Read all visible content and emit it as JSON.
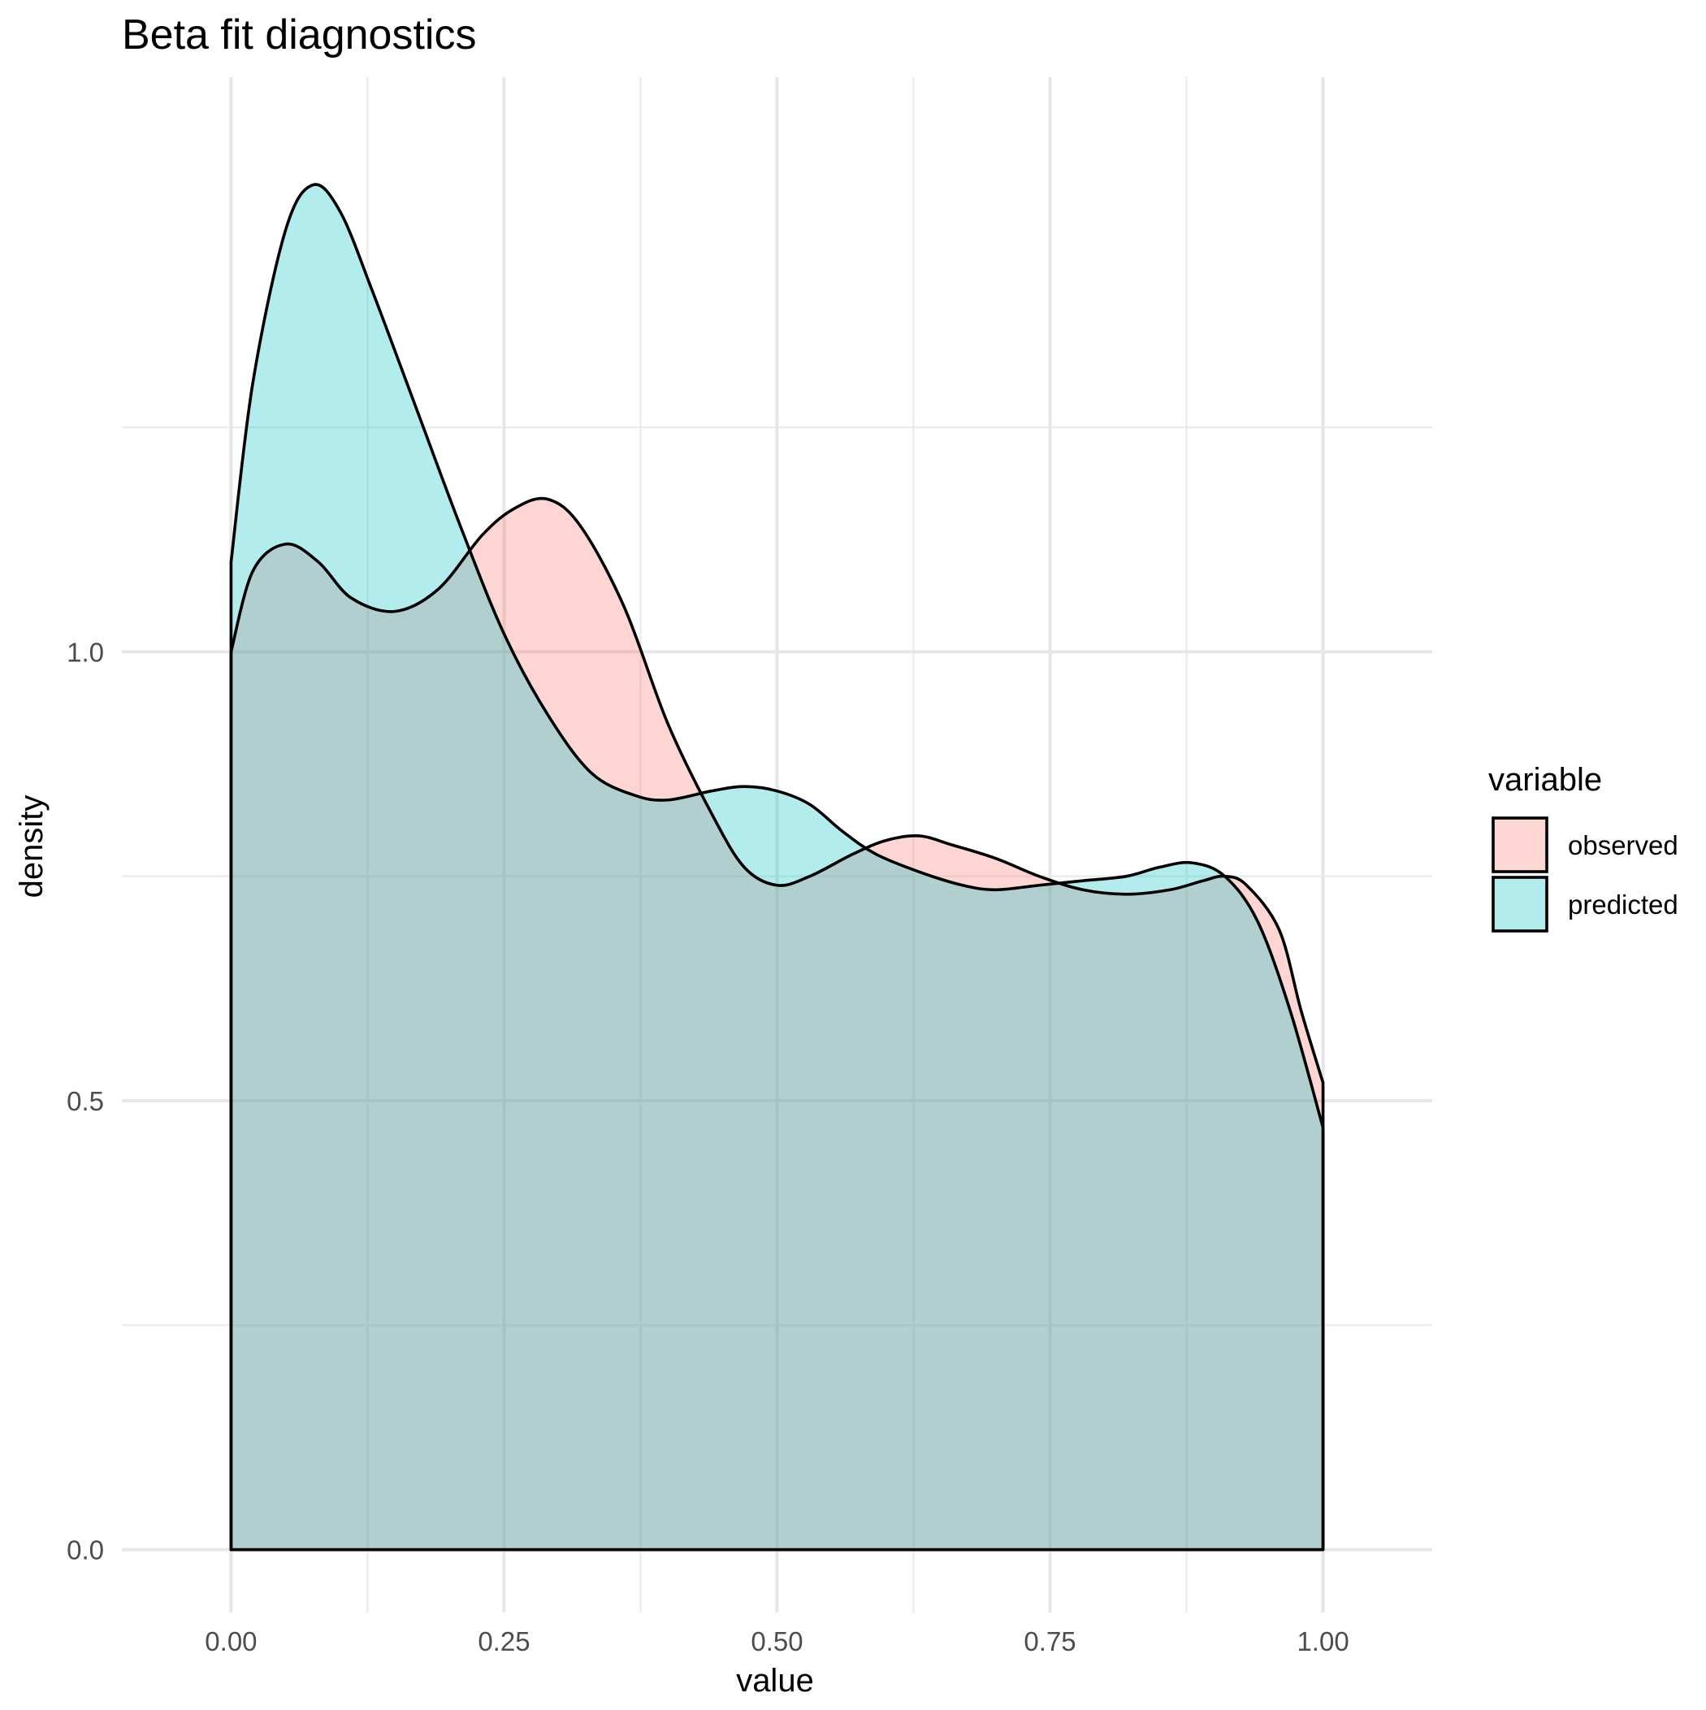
{
  "chart_data": {
    "type": "area",
    "title": "Beta fit diagnostics",
    "xlabel": "value",
    "ylabel": "density",
    "xlim": [
      -0.1,
      1.1
    ],
    "ylim": [
      -0.07,
      1.64
    ],
    "x_ticks": [
      0.0,
      0.25,
      0.5,
      0.75,
      1.0
    ],
    "x_tick_labels": [
      "0.00",
      "0.25",
      "0.50",
      "0.75",
      "1.00"
    ],
    "y_ticks": [
      0.0,
      0.5,
      1.0
    ],
    "y_tick_labels": [
      "0.0",
      "0.5",
      "1.0"
    ],
    "grid": true,
    "legend": {
      "title": "variable",
      "position": "right",
      "entries": [
        "observed",
        "predicted"
      ]
    },
    "series": [
      {
        "name": "observed",
        "color": "#F8766D",
        "points": [
          [
            0.0,
            1.0
          ],
          [
            0.02,
            1.09
          ],
          [
            0.05,
            1.12
          ],
          [
            0.08,
            1.1
          ],
          [
            0.11,
            1.06
          ],
          [
            0.15,
            1.045
          ],
          [
            0.19,
            1.07
          ],
          [
            0.23,
            1.13
          ],
          [
            0.26,
            1.16
          ],
          [
            0.29,
            1.17
          ],
          [
            0.32,
            1.14
          ],
          [
            0.36,
            1.05
          ],
          [
            0.4,
            0.92
          ],
          [
            0.44,
            0.82
          ],
          [
            0.47,
            0.76
          ],
          [
            0.5,
            0.74
          ],
          [
            0.53,
            0.75
          ],
          [
            0.57,
            0.775
          ],
          [
            0.6,
            0.79
          ],
          [
            0.63,
            0.795
          ],
          [
            0.66,
            0.785
          ],
          [
            0.7,
            0.77
          ],
          [
            0.74,
            0.75
          ],
          [
            0.78,
            0.735
          ],
          [
            0.82,
            0.73
          ],
          [
            0.86,
            0.735
          ],
          [
            0.89,
            0.745
          ],
          [
            0.91,
            0.75
          ],
          [
            0.93,
            0.74
          ],
          [
            0.96,
            0.69
          ],
          [
            0.98,
            0.6
          ],
          [
            1.0,
            0.52
          ]
        ]
      },
      {
        "name": "predicted",
        "color": "#00BFC4",
        "points": [
          [
            0.0,
            1.1
          ],
          [
            0.02,
            1.3
          ],
          [
            0.05,
            1.47
          ],
          [
            0.075,
            1.52
          ],
          [
            0.1,
            1.49
          ],
          [
            0.13,
            1.4
          ],
          [
            0.17,
            1.27
          ],
          [
            0.21,
            1.14
          ],
          [
            0.25,
            1.02
          ],
          [
            0.29,
            0.93
          ],
          [
            0.33,
            0.865
          ],
          [
            0.37,
            0.84
          ],
          [
            0.4,
            0.835
          ],
          [
            0.44,
            0.845
          ],
          [
            0.47,
            0.85
          ],
          [
            0.5,
            0.845
          ],
          [
            0.53,
            0.83
          ],
          [
            0.56,
            0.8
          ],
          [
            0.59,
            0.775
          ],
          [
            0.63,
            0.755
          ],
          [
            0.67,
            0.74
          ],
          [
            0.7,
            0.735
          ],
          [
            0.74,
            0.74
          ],
          [
            0.78,
            0.745
          ],
          [
            0.82,
            0.75
          ],
          [
            0.85,
            0.76
          ],
          [
            0.88,
            0.765
          ],
          [
            0.91,
            0.75
          ],
          [
            0.94,
            0.7
          ],
          [
            0.97,
            0.6
          ],
          [
            1.0,
            0.47
          ]
        ]
      }
    ]
  }
}
